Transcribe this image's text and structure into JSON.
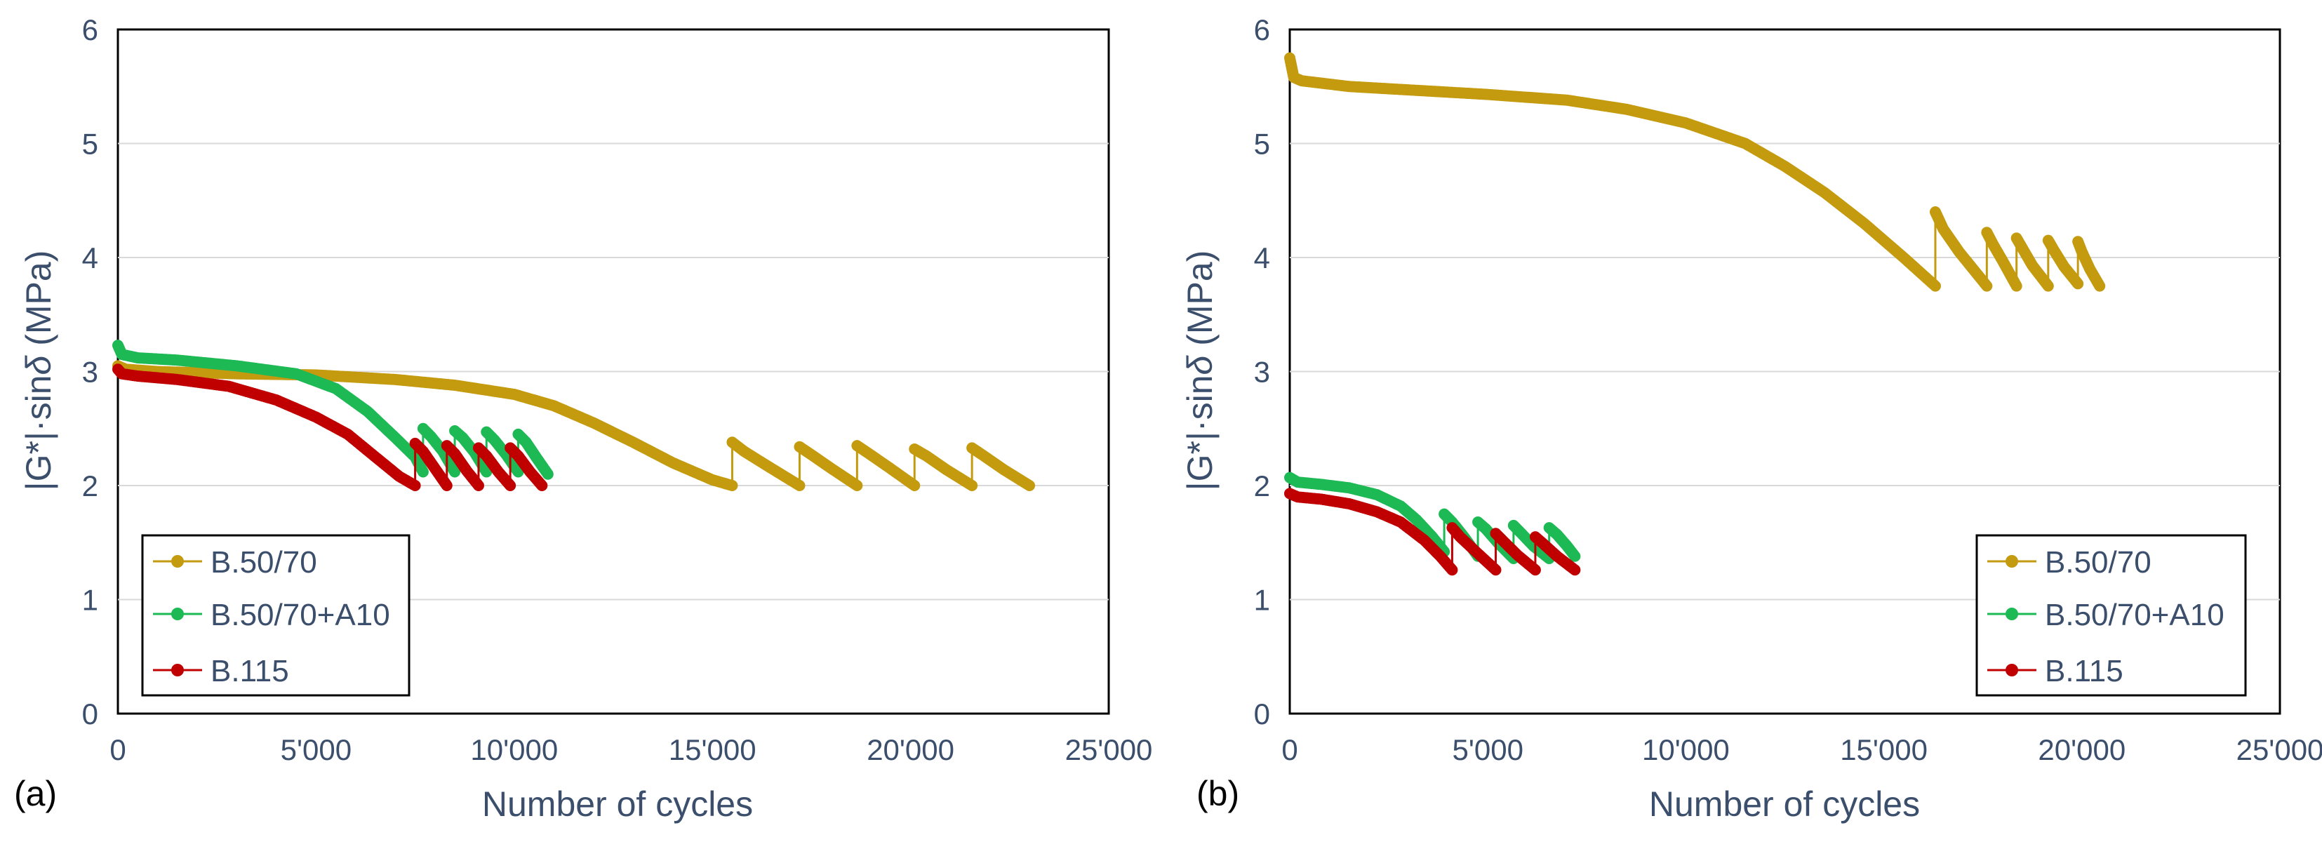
{
  "chart_data": [
    {
      "type": "line",
      "panel_label": "(a)",
      "xlabel": "Number of cycles",
      "ylabel": "|G*|·sinδ (MPa)",
      "ylabel_parts": {
        "pre": "|G*|·sin",
        "delta": "δ",
        "post": " (MPa)"
      },
      "xlim": [
        0,
        25000
      ],
      "ylim": [
        0,
        6
      ],
      "xticks": [
        0,
        5000,
        10000,
        15000,
        20000,
        25000
      ],
      "xtick_labels": [
        "0",
        "5'000",
        "10'000",
        "15'000",
        "20'000",
        "25'000"
      ],
      "yticks": [
        0,
        1,
        2,
        3,
        4,
        5,
        6
      ],
      "ytick_labels": [
        "0",
        "1",
        "2",
        "3",
        "4",
        "5",
        "6"
      ],
      "grid": "horizontal",
      "legend_position": "bottom-left",
      "series": [
        {
          "name": "B.50/70",
          "color": "#C49A0E",
          "segments": [
            [
              [
                0,
                3.05
              ],
              [
                200,
                3.02
              ],
              [
                1000,
                3.0
              ],
              [
                3000,
                2.98
              ],
              [
                5000,
                2.97
              ],
              [
                7000,
                2.93
              ],
              [
                8500,
                2.88
              ],
              [
                10000,
                2.8
              ],
              [
                11000,
                2.7
              ],
              [
                12000,
                2.55
              ],
              [
                13000,
                2.38
              ],
              [
                14000,
                2.2
              ],
              [
                15000,
                2.05
              ],
              [
                15500,
                2.0
              ]
            ],
            [
              [
                15500,
                2.38
              ],
              [
                15800,
                2.3
              ],
              [
                16400,
                2.17
              ],
              [
                17200,
                2.0
              ]
            ],
            [
              [
                17200,
                2.34
              ],
              [
                17500,
                2.27
              ],
              [
                18000,
                2.15
              ],
              [
                18650,
                2.0
              ]
            ],
            [
              [
                18650,
                2.35
              ],
              [
                18950,
                2.28
              ],
              [
                19450,
                2.16
              ],
              [
                20100,
                2.0
              ]
            ],
            [
              [
                20100,
                2.32
              ],
              [
                20400,
                2.26
              ],
              [
                20900,
                2.14
              ],
              [
                21550,
                2.0
              ]
            ],
            [
              [
                21550,
                2.33
              ],
              [
                21850,
                2.26
              ],
              [
                22350,
                2.14
              ],
              [
                23000,
                2.0
              ]
            ]
          ]
        },
        {
          "name": "B.50/70+A10",
          "color": "#1DB954",
          "segments": [
            [
              [
                0,
                3.23
              ],
              [
                100,
                3.15
              ],
              [
                500,
                3.12
              ],
              [
                1500,
                3.1
              ],
              [
                3000,
                3.05
              ],
              [
                4500,
                2.98
              ],
              [
                5500,
                2.85
              ],
              [
                6300,
                2.65
              ],
              [
                7000,
                2.42
              ],
              [
                7500,
                2.25
              ],
              [
                7700,
                2.12
              ]
            ],
            [
              [
                7700,
                2.5
              ],
              [
                7900,
                2.43
              ],
              [
                8200,
                2.3
              ],
              [
                8500,
                2.12
              ]
            ],
            [
              [
                8500,
                2.48
              ],
              [
                8700,
                2.42
              ],
              [
                9000,
                2.29
              ],
              [
                9300,
                2.12
              ]
            ],
            [
              [
                9300,
                2.47
              ],
              [
                9500,
                2.4
              ],
              [
                9800,
                2.27
              ],
              [
                10100,
                2.12
              ]
            ],
            [
              [
                10100,
                2.45
              ],
              [
                10300,
                2.38
              ],
              [
                10550,
                2.25
              ],
              [
                10850,
                2.1
              ]
            ]
          ]
        },
        {
          "name": "B.115",
          "color": "#C00000",
          "segments": [
            [
              [
                0,
                3.02
              ],
              [
                100,
                2.98
              ],
              [
                500,
                2.96
              ],
              [
                1500,
                2.93
              ],
              [
                2800,
                2.87
              ],
              [
                4000,
                2.75
              ],
              [
                5000,
                2.6
              ],
              [
                5800,
                2.45
              ],
              [
                6500,
                2.25
              ],
              [
                7100,
                2.08
              ],
              [
                7500,
                2.0
              ]
            ],
            [
              [
                7500,
                2.37
              ],
              [
                7700,
                2.3
              ],
              [
                8000,
                2.15
              ],
              [
                8300,
                2.0
              ]
            ],
            [
              [
                8300,
                2.35
              ],
              [
                8500,
                2.28
              ],
              [
                8800,
                2.13
              ],
              [
                9100,
                2.0
              ]
            ],
            [
              [
                9100,
                2.33
              ],
              [
                9300,
                2.26
              ],
              [
                9600,
                2.12
              ],
              [
                9900,
                2.0
              ]
            ],
            [
              [
                9900,
                2.33
              ],
              [
                10100,
                2.26
              ],
              [
                10400,
                2.12
              ],
              [
                10700,
                2.0
              ]
            ]
          ]
        }
      ]
    },
    {
      "type": "line",
      "panel_label": "(b)",
      "xlabel": "Number of cycles",
      "ylabel": "|G*|·sinδ (MPa)",
      "ylabel_parts": {
        "pre": "|G*|·sin",
        "delta": "δ",
        "post": " (MPa)"
      },
      "xlim": [
        0,
        25000
      ],
      "ylim": [
        0,
        6
      ],
      "xticks": [
        0,
        5000,
        10000,
        15000,
        20000,
        25000
      ],
      "xtick_labels": [
        "0",
        "5'000",
        "10'000",
        "15'000",
        "20'000",
        "25'000"
      ],
      "yticks": [
        0,
        1,
        2,
        3,
        4,
        5,
        6
      ],
      "ytick_labels": [
        "0",
        "1",
        "2",
        "3",
        "4",
        "5",
        "6"
      ],
      "grid": "horizontal",
      "legend_position": "bottom-right",
      "series": [
        {
          "name": "B.50/70",
          "color": "#C49A0E",
          "segments": [
            [
              [
                0,
                5.75
              ],
              [
                100,
                5.58
              ],
              [
                300,
                5.55
              ],
              [
                1500,
                5.5
              ],
              [
                3000,
                5.47
              ],
              [
                5000,
                5.43
              ],
              [
                7000,
                5.38
              ],
              [
                8500,
                5.3
              ],
              [
                10000,
                5.18
              ],
              [
                11500,
                5.0
              ],
              [
                12500,
                4.8
              ],
              [
                13500,
                4.57
              ],
              [
                14500,
                4.3
              ],
              [
                15500,
                4.0
              ],
              [
                16300,
                3.75
              ]
            ],
            [
              [
                16300,
                4.4
              ],
              [
                16500,
                4.25
              ],
              [
                16900,
                4.05
              ],
              [
                17600,
                3.75
              ]
            ],
            [
              [
                17600,
                4.22
              ],
              [
                17750,
                4.12
              ],
              [
                18000,
                3.97
              ],
              [
                18350,
                3.75
              ]
            ],
            [
              [
                18350,
                4.17
              ],
              [
                18500,
                4.08
              ],
              [
                18750,
                3.93
              ],
              [
                19150,
                3.75
              ]
            ],
            [
              [
                19150,
                4.15
              ],
              [
                19300,
                4.06
              ],
              [
                19550,
                3.92
              ],
              [
                19900,
                3.77
              ]
            ],
            [
              [
                19900,
                4.14
              ],
              [
                20000,
                4.05
              ],
              [
                20200,
                3.9
              ],
              [
                20450,
                3.75
              ]
            ]
          ]
        },
        {
          "name": "B.50/70+A10",
          "color": "#1DB954",
          "segments": [
            [
              [
                0,
                2.07
              ],
              [
                200,
                2.03
              ],
              [
                800,
                2.01
              ],
              [
                1500,
                1.98
              ],
              [
                2200,
                1.92
              ],
              [
                2800,
                1.82
              ],
              [
                3200,
                1.7
              ],
              [
                3600,
                1.55
              ],
              [
                3900,
                1.42
              ]
            ],
            [
              [
                3900,
                1.75
              ],
              [
                4100,
                1.68
              ],
              [
                4400,
                1.55
              ],
              [
                4750,
                1.38
              ]
            ],
            [
              [
                4750,
                1.68
              ],
              [
                4950,
                1.62
              ],
              [
                5250,
                1.5
              ],
              [
                5650,
                1.36
              ]
            ],
            [
              [
                5650,
                1.65
              ],
              [
                5850,
                1.58
              ],
              [
                6150,
                1.47
              ],
              [
                6550,
                1.36
              ]
            ],
            [
              [
                6550,
                1.63
              ],
              [
                6750,
                1.57
              ],
              [
                7000,
                1.47
              ],
              [
                7200,
                1.38
              ]
            ]
          ]
        },
        {
          "name": "B.115",
          "color": "#C00000",
          "segments": [
            [
              [
                0,
                1.93
              ],
              [
                200,
                1.9
              ],
              [
                800,
                1.88
              ],
              [
                1500,
                1.84
              ],
              [
                2200,
                1.77
              ],
              [
                2800,
                1.68
              ],
              [
                3400,
                1.52
              ],
              [
                3800,
                1.38
              ],
              [
                4100,
                1.26
              ]
            ],
            [
              [
                4100,
                1.63
              ],
              [
                4300,
                1.55
              ],
              [
                4700,
                1.42
              ],
              [
                5200,
                1.26
              ]
            ],
            [
              [
                5200,
                1.58
              ],
              [
                5400,
                1.51
              ],
              [
                5750,
                1.39
              ],
              [
                6200,
                1.26
              ]
            ],
            [
              [
                6200,
                1.55
              ],
              [
                6400,
                1.49
              ],
              [
                6750,
                1.38
              ],
              [
                7200,
                1.26
              ]
            ]
          ]
        }
      ]
    }
  ]
}
